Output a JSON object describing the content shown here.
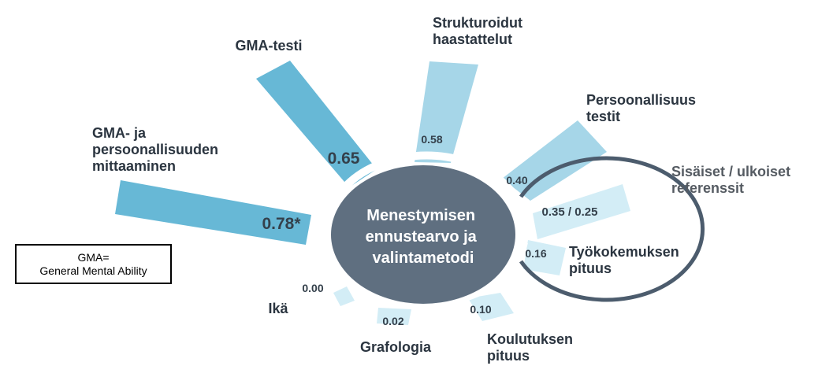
{
  "center": {
    "lines": [
      "Menestymisen",
      "ennustearvo ja",
      "valintametodi"
    ]
  },
  "note": {
    "line1": "GMA=",
    "line2": "General Mental Ability"
  },
  "colors": {
    "dark": "#5f6f80",
    "strong": "#67b8d6",
    "medium": "#a6d6e8",
    "light": "#d3edf6"
  },
  "chart_data": {
    "type": "radial-bar",
    "items": [
      {
        "name": "gma-persoonallisuus",
        "label": [
          "GMA- ja",
          "persoonallisuuden",
          "mittaaminen"
        ],
        "value_label": "0.78*",
        "value": 0.78
      },
      {
        "name": "gma-testi",
        "label": [
          "GMA-testi"
        ],
        "value_label": "0.65",
        "value": 0.65
      },
      {
        "name": "strukturoidut-haastattelut",
        "label": [
          "Strukturoidut",
          "haastattelut"
        ],
        "value_label": "0.58",
        "value": 0.58
      },
      {
        "name": "persoonallisuustestit",
        "label": [
          "Persoonallisuus",
          "testit"
        ],
        "value_label": "0.40",
        "value": 0.4
      },
      {
        "name": "referenssit",
        "label": [
          "Sisäiset / ulkoiset",
          "referenssit"
        ],
        "value_label": "0.35 / 0.25",
        "value": 0.35
      },
      {
        "name": "tyokokemus",
        "label": [
          "Työkokemuksen",
          "pituus"
        ],
        "value_label": "0.16",
        "value": 0.16
      },
      {
        "name": "koulutus",
        "label": [
          "Koulutuksen",
          "pituus"
        ],
        "value_label": "0.10",
        "value": 0.1
      },
      {
        "name": "grafologia",
        "label": [
          "Grafologia"
        ],
        "value_label": "0.02",
        "value": 0.02
      },
      {
        "name": "ika",
        "label": [
          "Ikä"
        ],
        "value_label": "0.00",
        "value": 0.0
      }
    ]
  }
}
